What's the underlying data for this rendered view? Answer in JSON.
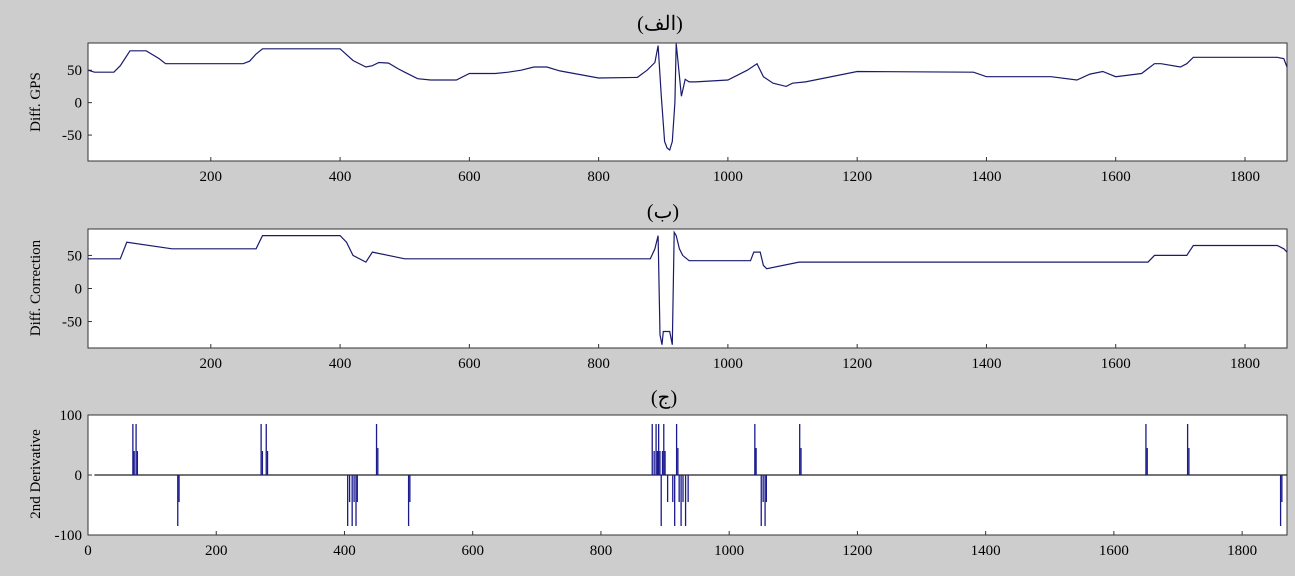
{
  "chart_data": [
    {
      "type": "line",
      "title": "(الف)",
      "ylabel": "Diff. GPS",
      "xlabel": "",
      "xlim": [
        10,
        1865
      ],
      "ylim": [
        -90,
        92
      ],
      "xticks": [
        200,
        400,
        600,
        800,
        1000,
        1200,
        1400,
        1600,
        1800
      ],
      "yticks": [
        50,
        0,
        -50
      ],
      "grid": false,
      "color": "#1a1a6e",
      "x": [
        10,
        20,
        50,
        60,
        75,
        100,
        120,
        130,
        140,
        250,
        260,
        270,
        280,
        300,
        400,
        420,
        440,
        450,
        460,
        475,
        490,
        500,
        520,
        540,
        580,
        600,
        640,
        660,
        680,
        700,
        720,
        740,
        800,
        860,
        875,
        887,
        892,
        897,
        902,
        906,
        910,
        914,
        918,
        920,
        923,
        928,
        934,
        940,
        950,
        1000,
        1030,
        1045,
        1055,
        1070,
        1090,
        1100,
        1120,
        1200,
        1380,
        1400,
        1500,
        1540,
        1560,
        1580,
        1600,
        1640,
        1660,
        1670,
        1700,
        1710,
        1720,
        1850,
        1860,
        1865
      ],
      "y": [
        50,
        47,
        47,
        57,
        80,
        80,
        68,
        60,
        60,
        60,
        64,
        75,
        83,
        83,
        83,
        65,
        55,
        57,
        62,
        61,
        52,
        47,
        37,
        35,
        35,
        45,
        45,
        47,
        50,
        55,
        55,
        49,
        38,
        39,
        50,
        62,
        88,
        10,
        -60,
        -70,
        -73,
        -60,
        0,
        91,
        62,
        10,
        36,
        32,
        32,
        35,
        50,
        60,
        40,
        30,
        25,
        30,
        32,
        48,
        47,
        40,
        40,
        35,
        44,
        48,
        40,
        45,
        60,
        60,
        55,
        60,
        70,
        70,
        68,
        55
      ]
    },
    {
      "type": "line",
      "title": "(ب)",
      "ylabel": "Diff. Correction",
      "xlabel": "",
      "xlim": [
        10,
        1865
      ],
      "ylim": [
        -90,
        90
      ],
      "xticks": [
        200,
        400,
        600,
        800,
        1000,
        1200,
        1400,
        1600,
        1800
      ],
      "yticks": [
        50,
        0,
        -50
      ],
      "grid": false,
      "color": "#1a1a6e",
      "x": [
        10,
        60,
        70,
        140,
        270,
        280,
        400,
        410,
        420,
        440,
        450,
        500,
        880,
        887,
        892,
        895,
        898,
        900,
        910,
        914,
        917,
        920,
        925,
        930,
        940,
        1035,
        1040,
        1050,
        1055,
        1060,
        1110,
        1650,
        1660,
        1710,
        1720,
        1850,
        1860,
        1865
      ],
      "y": [
        45,
        45,
        70,
        60,
        60,
        80,
        80,
        70,
        50,
        40,
        55,
        45,
        45,
        60,
        80,
        -70,
        -85,
        -65,
        -65,
        -85,
        85,
        80,
        60,
        50,
        42,
        42,
        55,
        55,
        35,
        30,
        40,
        40,
        50,
        50,
        65,
        65,
        60,
        55
      ]
    },
    {
      "type": "bar",
      "title": "(ج)",
      "ylabel": "2nd Derivative",
      "xlabel": "",
      "xlim": [
        0,
        1870
      ],
      "ylim": [
        -100,
        100
      ],
      "xticks": [
        0,
        200,
        400,
        600,
        800,
        1000,
        1200,
        1400,
        1600,
        1800
      ],
      "yticks": [
        100,
        0,
        -100
      ],
      "grid": false,
      "baseline_start": 10,
      "color": "#1a1a8e",
      "spikes": [
        [
          70,
          85
        ],
        [
          72,
          40
        ],
        [
          75,
          85
        ],
        [
          77,
          40
        ],
        [
          140,
          -85
        ],
        [
          142,
          -45
        ],
        [
          270,
          85
        ],
        [
          272,
          40
        ],
        [
          278,
          85
        ],
        [
          280,
          40
        ],
        [
          405,
          -85
        ],
        [
          408,
          -45
        ],
        [
          412,
          -85
        ],
        [
          415,
          -45
        ],
        [
          418,
          -85
        ],
        [
          420,
          -45
        ],
        [
          450,
          85
        ],
        [
          452,
          45
        ],
        [
          500,
          -85
        ],
        [
          502,
          -45
        ],
        [
          880,
          85
        ],
        [
          883,
          40
        ],
        [
          886,
          85
        ],
        [
          888,
          40
        ],
        [
          890,
          85
        ],
        [
          892,
          40
        ],
        [
          894,
          -85
        ],
        [
          896,
          40
        ],
        [
          898,
          85
        ],
        [
          900,
          40
        ],
        [
          904,
          -45
        ],
        [
          912,
          -45
        ],
        [
          915,
          -85
        ],
        [
          918,
          85
        ],
        [
          920,
          45
        ],
        [
          922,
          -45
        ],
        [
          925,
          -85
        ],
        [
          928,
          -45
        ],
        [
          932,
          -85
        ],
        [
          936,
          -45
        ],
        [
          1040,
          85
        ],
        [
          1042,
          45
        ],
        [
          1050,
          -85
        ],
        [
          1053,
          -45
        ],
        [
          1056,
          -85
        ],
        [
          1058,
          -45
        ],
        [
          1110,
          85
        ],
        [
          1112,
          45
        ],
        [
          1650,
          85
        ],
        [
          1652,
          45
        ],
        [
          1715,
          85
        ],
        [
          1717,
          45
        ],
        [
          1860,
          -85
        ],
        [
          1862,
          -45
        ]
      ]
    }
  ]
}
